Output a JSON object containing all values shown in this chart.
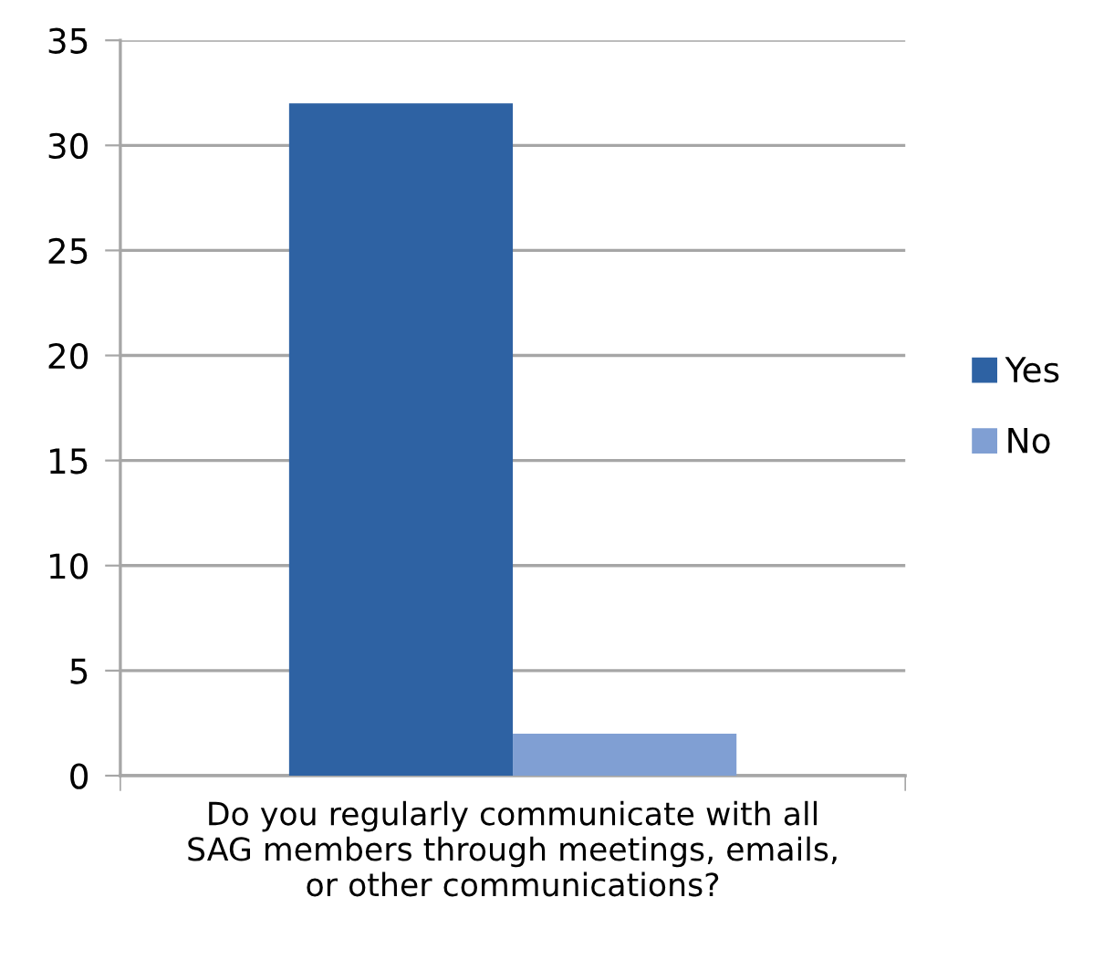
{
  "chart_data": {
    "type": "bar",
    "categories": [
      "Do you regularly communicate with all\nSAG members through meetings, emails,\nor other communications?"
    ],
    "series": [
      {
        "name": "Yes",
        "color": "#2e62a3",
        "values": [
          32
        ]
      },
      {
        "name": "No",
        "color": "#809fd3",
        "values": [
          2
        ]
      }
    ],
    "ylim": [
      0,
      35
    ],
    "yticks": [
      0,
      5,
      10,
      15,
      20,
      25,
      30,
      35
    ],
    "grid": "y",
    "legend": "right"
  }
}
